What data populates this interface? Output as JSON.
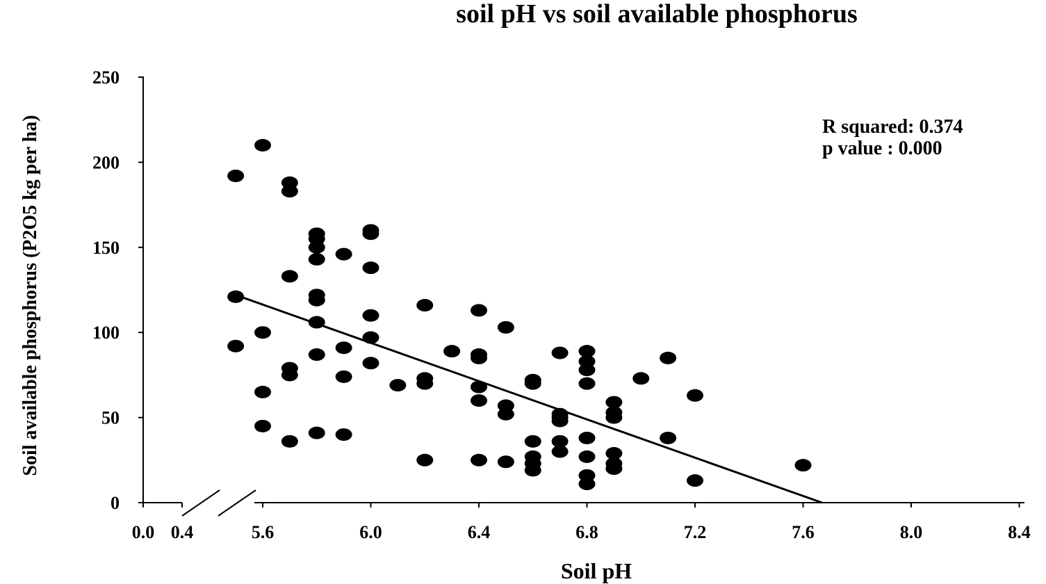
{
  "chart_data": {
    "type": "scatter",
    "title": "soil pH vs soil available phosphorus",
    "xlabel": "Soil pH",
    "ylabel": "Soil available phosphorus (P2O5 kg per ha)",
    "ylim": [
      0,
      250
    ],
    "xlim": [
      5.3,
      8.4
    ],
    "x_break": true,
    "y_ticks": [
      "0",
      "50",
      "100",
      "150",
      "200",
      "250"
    ],
    "y_tick_values": [
      0,
      50,
      100,
      150,
      200,
      250
    ],
    "x_ticks_pre_break": [
      "0.0",
      "0.4"
    ],
    "x_ticks": [
      "5.6",
      "6.0",
      "6.4",
      "6.8",
      "7.2",
      "7.6",
      "8.0",
      "8.4"
    ],
    "x_tick_values": [
      5.6,
      6.0,
      6.4,
      6.8,
      7.2,
      7.6,
      8.0,
      8.4
    ],
    "annotation": [
      "R squared: 0.374",
      "p value : 0.000"
    ],
    "regression_line": {
      "x": [
        5.5,
        7.67
      ],
      "y": [
        122,
        0
      ]
    },
    "points": [
      {
        "x": 5.5,
        "y": 192
      },
      {
        "x": 5.5,
        "y": 121
      },
      {
        "x": 5.5,
        "y": 92
      },
      {
        "x": 5.6,
        "y": 210
      },
      {
        "x": 5.6,
        "y": 100
      },
      {
        "x": 5.6,
        "y": 65
      },
      {
        "x": 5.6,
        "y": 45
      },
      {
        "x": 5.7,
        "y": 188
      },
      {
        "x": 5.7,
        "y": 183
      },
      {
        "x": 5.7,
        "y": 133
      },
      {
        "x": 5.7,
        "y": 79
      },
      {
        "x": 5.7,
        "y": 75
      },
      {
        "x": 5.7,
        "y": 36
      },
      {
        "x": 5.8,
        "y": 158
      },
      {
        "x": 5.8,
        "y": 155
      },
      {
        "x": 5.8,
        "y": 150
      },
      {
        "x": 5.8,
        "y": 143
      },
      {
        "x": 5.8,
        "y": 122
      },
      {
        "x": 5.8,
        "y": 119
      },
      {
        "x": 5.8,
        "y": 106
      },
      {
        "x": 5.8,
        "y": 87
      },
      {
        "x": 5.8,
        "y": 41
      },
      {
        "x": 5.9,
        "y": 146
      },
      {
        "x": 5.9,
        "y": 91
      },
      {
        "x": 5.9,
        "y": 74
      },
      {
        "x": 5.9,
        "y": 40
      },
      {
        "x": 6.0,
        "y": 160
      },
      {
        "x": 6.0,
        "y": 158
      },
      {
        "x": 6.0,
        "y": 138
      },
      {
        "x": 6.0,
        "y": 110
      },
      {
        "x": 6.0,
        "y": 97
      },
      {
        "x": 6.0,
        "y": 82
      },
      {
        "x": 6.1,
        "y": 69
      },
      {
        "x": 6.2,
        "y": 116
      },
      {
        "x": 6.2,
        "y": 73
      },
      {
        "x": 6.2,
        "y": 70
      },
      {
        "x": 6.2,
        "y": 25
      },
      {
        "x": 6.3,
        "y": 89
      },
      {
        "x": 6.4,
        "y": 113
      },
      {
        "x": 6.4,
        "y": 87
      },
      {
        "x": 6.4,
        "y": 85
      },
      {
        "x": 6.4,
        "y": 68
      },
      {
        "x": 6.4,
        "y": 60
      },
      {
        "x": 6.4,
        "y": 25
      },
      {
        "x": 6.5,
        "y": 103
      },
      {
        "x": 6.5,
        "y": 57
      },
      {
        "x": 6.5,
        "y": 52
      },
      {
        "x": 6.5,
        "y": 24
      },
      {
        "x": 6.6,
        "y": 72
      },
      {
        "x": 6.6,
        "y": 70
      },
      {
        "x": 6.6,
        "y": 36
      },
      {
        "x": 6.6,
        "y": 27
      },
      {
        "x": 6.6,
        "y": 23
      },
      {
        "x": 6.6,
        "y": 19
      },
      {
        "x": 6.7,
        "y": 88
      },
      {
        "x": 6.7,
        "y": 52
      },
      {
        "x": 6.7,
        "y": 50
      },
      {
        "x": 6.7,
        "y": 48
      },
      {
        "x": 6.7,
        "y": 36
      },
      {
        "x": 6.7,
        "y": 30
      },
      {
        "x": 6.8,
        "y": 89
      },
      {
        "x": 6.8,
        "y": 83
      },
      {
        "x": 6.8,
        "y": 78
      },
      {
        "x": 6.8,
        "y": 70
      },
      {
        "x": 6.8,
        "y": 38
      },
      {
        "x": 6.8,
        "y": 27
      },
      {
        "x": 6.8,
        "y": 16
      },
      {
        "x": 6.8,
        "y": 11
      },
      {
        "x": 6.9,
        "y": 59
      },
      {
        "x": 6.9,
        "y": 53
      },
      {
        "x": 6.9,
        "y": 50
      },
      {
        "x": 6.9,
        "y": 29
      },
      {
        "x": 6.9,
        "y": 23
      },
      {
        "x": 6.9,
        "y": 20
      },
      {
        "x": 7.0,
        "y": 73
      },
      {
        "x": 7.1,
        "y": 85
      },
      {
        "x": 7.1,
        "y": 38
      },
      {
        "x": 7.2,
        "y": 63
      },
      {
        "x": 7.2,
        "y": 13
      },
      {
        "x": 7.6,
        "y": 22
      }
    ],
    "grid": false,
    "legend": "none"
  }
}
